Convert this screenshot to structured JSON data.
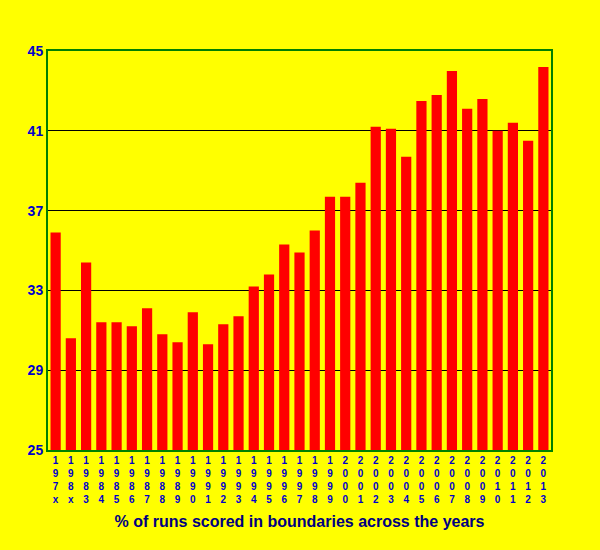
{
  "chart_data": {
    "type": "bar",
    "title": "% of runs scored in boundaries across the years",
    "categories": [
      "197x",
      "198x",
      "1983",
      "1984",
      "1985",
      "1986",
      "1987",
      "1988",
      "1989",
      "1990",
      "1991",
      "1992",
      "1993",
      "1994",
      "1995",
      "1996",
      "1997",
      "1998",
      "1999",
      "2000",
      "2001",
      "2002",
      "2003",
      "2004",
      "2005",
      "2006",
      "2007",
      "2008",
      "2009",
      "2010",
      "2011",
      "2012",
      "2013"
    ],
    "values": [
      35.9,
      30.6,
      34.4,
      31.4,
      31.4,
      31.2,
      32.1,
      30.8,
      30.4,
      31.9,
      30.3,
      31.3,
      31.7,
      33.2,
      33.8,
      35.3,
      34.9,
      36.0,
      37.7,
      37.7,
      38.4,
      41.2,
      41.1,
      39.7,
      42.5,
      42.8,
      44.0,
      42.1,
      42.6,
      41.0,
      41.4,
      40.5,
      44.2
    ],
    "color": "#ff0000",
    "ylim": [
      25,
      45
    ],
    "yticks": [
      25,
      29,
      33,
      37,
      41,
      45
    ],
    "grid": true
  }
}
